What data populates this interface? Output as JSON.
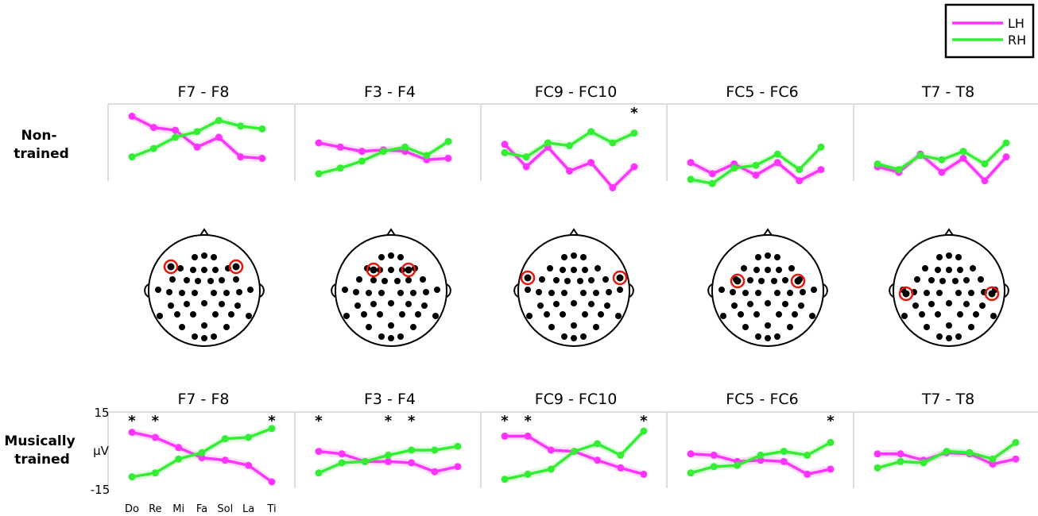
{
  "legend": [
    {
      "label": "LH",
      "color": "#ff33ff"
    },
    {
      "label": "RH",
      "color": "#33ee33"
    }
  ],
  "row_labels": {
    "non_trained": [
      "Non-",
      "trained"
    ],
    "musically_trained": [
      "Musically",
      "trained"
    ]
  },
  "chart_data": [
    {
      "type": "line",
      "group": "Non-trained",
      "title": "F7 - F8",
      "categories": [
        "Do",
        "Re",
        "Mi",
        "Fa",
        "Sol",
        "La",
        "Ti"
      ],
      "series": [
        {
          "name": "LH",
          "values": [
            9.5,
            5.5,
            4.5,
            -1.5,
            2.0,
            -5.0,
            -5.5
          ]
        },
        {
          "name": "RH",
          "values": [
            -5.0,
            -2.0,
            2.0,
            4.0,
            8.0,
            6.0,
            5.0
          ]
        }
      ],
      "significant": []
    },
    {
      "type": "line",
      "group": "Non-trained",
      "title": "F3 - F4",
      "categories": [
        "Do",
        "Re",
        "Mi",
        "Fa",
        "Sol",
        "La",
        "Ti"
      ],
      "series": [
        {
          "name": "LH",
          "values": [
            0.0,
            -1.5,
            -3.0,
            -2.5,
            -3.0,
            -6.0,
            -5.5
          ]
        },
        {
          "name": "RH",
          "values": [
            -11.0,
            -9.0,
            -6.5,
            -3.0,
            -1.5,
            -4.5,
            0.5
          ]
        }
      ],
      "significant": []
    },
    {
      "type": "line",
      "group": "Non-trained",
      "title": "FC9 - FC10",
      "categories": [
        "Do",
        "Re",
        "Mi",
        "Fa",
        "Sol",
        "La",
        "Ti"
      ],
      "series": [
        {
          "name": "LH",
          "values": [
            -0.5,
            -8.5,
            -1.5,
            -10.0,
            -7.0,
            -16.0,
            -8.5
          ]
        },
        {
          "name": "RH",
          "values": [
            -3.5,
            -5.0,
            0.0,
            -1.0,
            4.0,
            0.0,
            3.5
          ]
        }
      ],
      "significant": [
        "Ti"
      ]
    },
    {
      "type": "line",
      "group": "Non-trained",
      "title": "FC5 - FC6",
      "categories": [
        "Do",
        "Re",
        "Mi",
        "Fa",
        "Sol",
        "La",
        "Ti"
      ],
      "series": [
        {
          "name": "LH",
          "values": [
            -7.0,
            -11.0,
            -7.5,
            -11.5,
            -7.0,
            -13.5,
            -9.5
          ]
        },
        {
          "name": "RH",
          "values": [
            -13.0,
            -14.5,
            -9.0,
            -8.0,
            -4.0,
            -9.5,
            -1.5
          ]
        }
      ],
      "significant": []
    },
    {
      "type": "line",
      "group": "Non-trained",
      "title": "T7 - T8",
      "categories": [
        "Do",
        "Re",
        "Mi",
        "Fa",
        "Sol",
        "La",
        "Ti"
      ],
      "series": [
        {
          "name": "LH",
          "values": [
            -8.5,
            -10.5,
            -4.0,
            -10.5,
            -5.5,
            -13.5,
            -5.0
          ]
        },
        {
          "name": "RH",
          "values": [
            -7.5,
            -9.5,
            -4.5,
            -6.0,
            -3.0,
            -7.5,
            0.0
          ]
        }
      ],
      "significant": []
    },
    {
      "type": "line",
      "group": "Musically trained",
      "title": "F7 - F8",
      "categories": [
        "Do",
        "Re",
        "Mi",
        "Fa",
        "Sol",
        "La",
        "Ti"
      ],
      "series": [
        {
          "name": "LH",
          "values": [
            7.0,
            5.0,
            1.0,
            -3.0,
            -4.0,
            -6.0,
            -12.5
          ]
        },
        {
          "name": "RH",
          "values": [
            -10.5,
            -9.0,
            -3.5,
            -1.0,
            4.5,
            5.0,
            8.5
          ]
        }
      ],
      "significant": [
        "Do",
        "Re",
        "Ti"
      ],
      "ylabel": "μV",
      "ylim": [
        -15,
        15
      ],
      "yticks": [
        "15",
        "-15"
      ]
    },
    {
      "type": "line",
      "group": "Musically trained",
      "title": "F3 - F4",
      "categories": [
        "Do",
        "Re",
        "Mi",
        "Fa",
        "Sol",
        "La",
        "Ti"
      ],
      "series": [
        {
          "name": "LH",
          "values": [
            -0.5,
            -1.5,
            -4.5,
            -4.5,
            -5.0,
            -8.5,
            -6.5
          ]
        },
        {
          "name": "RH",
          "values": [
            -9.0,
            -5.0,
            -4.5,
            -2.0,
            0.0,
            0.0,
            1.5
          ]
        }
      ],
      "significant": [
        "Do",
        "Fa",
        "Sol"
      ]
    },
    {
      "type": "line",
      "group": "Musically trained",
      "title": "FC9 - FC10",
      "categories": [
        "Do",
        "Re",
        "Mi",
        "Fa",
        "Sol",
        "La",
        "Ti"
      ],
      "series": [
        {
          "name": "LH",
          "values": [
            5.5,
            5.5,
            0.0,
            -0.5,
            -4.0,
            -7.0,
            -9.5
          ]
        },
        {
          "name": "RH",
          "values": [
            -11.5,
            -9.5,
            -7.5,
            -0.5,
            2.5,
            -2.0,
            7.5
          ]
        }
      ],
      "significant": [
        "Do",
        "Re",
        "Ti"
      ]
    },
    {
      "type": "line",
      "group": "Musically trained",
      "title": "FC5 - FC6",
      "categories": [
        "Do",
        "Re",
        "Mi",
        "Fa",
        "Sol",
        "La",
        "Ti"
      ],
      "series": [
        {
          "name": "LH",
          "values": [
            -1.5,
            -2.0,
            -4.5,
            -4.0,
            -4.5,
            -9.5,
            -7.5
          ]
        },
        {
          "name": "RH",
          "values": [
            -9.0,
            -6.5,
            -6.0,
            -2.0,
            -0.5,
            -2.0,
            3.0
          ]
        }
      ],
      "significant": [
        "Ti"
      ]
    },
    {
      "type": "line",
      "group": "Musically trained",
      "title": "T7 - T8",
      "categories": [
        "Do",
        "Re",
        "Mi",
        "Fa",
        "Sol",
        "La",
        "Ti"
      ],
      "series": [
        {
          "name": "LH",
          "values": [
            -1.5,
            -1.5,
            -4.0,
            -1.0,
            -1.5,
            -5.5,
            -3.5
          ]
        },
        {
          "name": "RH",
          "values": [
            -7.0,
            -4.5,
            -5.0,
            -0.5,
            -1.0,
            -3.5,
            3.0
          ]
        }
      ],
      "significant": []
    }
  ]
}
